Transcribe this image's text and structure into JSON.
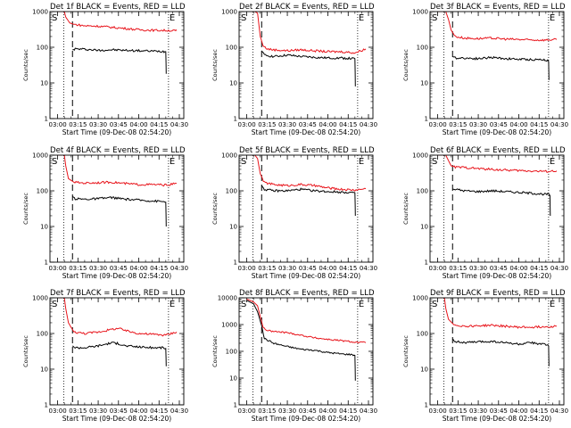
{
  "colors": {
    "events": "#000000",
    "lld": "#e8141b",
    "axis": "#000000",
    "background": "#ffffff"
  },
  "shared": {
    "ylabel": "Counts/sec",
    "xlabel": "Start Time (09-Dec-08 02:54:20)",
    "x_ticks": [
      "03:00",
      "03:15",
      "03:30",
      "03:45",
      "04:00",
      "04:15",
      "04:30"
    ],
    "x_tick_minutes": [
      0,
      15,
      30,
      45,
      60,
      75,
      90
    ],
    "marker_S": "S",
    "marker_E": "E"
  },
  "chart_data": [
    {
      "type": "line",
      "title": "Det 1f BLACK = Events, RED = LLD",
      "xlim_minutes": [
        -5.67,
        93.3
      ],
      "yscale": "log",
      "ylim": [
        1,
        1000
      ],
      "y_ticks": [
        "1",
        "10",
        "100",
        "1000"
      ],
      "dotted_lines_minutes": [
        4.5,
        82
      ],
      "dashed_line_minutes": [
        11
      ],
      "series": [
        {
          "name": "Events",
          "color": "black",
          "x": [
            11,
            13,
            20,
            30,
            40,
            50,
            60,
            70,
            78,
            80,
            80.3
          ],
          "y": [
            85,
            90,
            88,
            82,
            85,
            82,
            80,
            78,
            77,
            75,
            18
          ]
        },
        {
          "name": "LLD",
          "color": "red",
          "x": [
            0,
            5,
            6,
            9,
            12,
            20,
            30,
            45,
            60,
            70,
            82,
            87,
            88
          ],
          "y": [
            1000,
            1000,
            700,
            480,
            440,
            400,
            390,
            350,
            310,
            300,
            295,
            290,
            290
          ]
        }
      ]
    },
    {
      "type": "line",
      "title": "Det 2f BLACK = Events, RED = LLD",
      "xlim_minutes": [
        -5.67,
        93.3
      ],
      "yscale": "log",
      "ylim": [
        1,
        1000
      ],
      "y_ticks": [
        "1",
        "10",
        "100",
        "1000"
      ],
      "dotted_lines_minutes": [
        4.5,
        82
      ],
      "dashed_line_minutes": [
        11
      ],
      "series": [
        {
          "name": "Events",
          "color": "black",
          "x": [
            11,
            13,
            20,
            30,
            40,
            50,
            60,
            70,
            78,
            80,
            80.3
          ],
          "y": [
            80,
            60,
            55,
            60,
            55,
            52,
            50,
            50,
            48,
            48,
            8
          ]
        },
        {
          "name": "LLD",
          "color": "red",
          "x": [
            3,
            6,
            8,
            10,
            12,
            15,
            20,
            30,
            40,
            50,
            60,
            70,
            80,
            88
          ],
          "y": [
            1000,
            1000,
            900,
            200,
            110,
            90,
            85,
            80,
            85,
            80,
            75,
            75,
            70,
            90
          ]
        }
      ]
    },
    {
      "type": "line",
      "title": "Det 3f BLACK = Events, RED = LLD",
      "xlim_minutes": [
        -5.67,
        93.3
      ],
      "yscale": "log",
      "ylim": [
        1,
        1000
      ],
      "y_ticks": [
        "1",
        "10",
        "100",
        "1000"
      ],
      "dotted_lines_minutes": [
        4.5,
        82
      ],
      "dashed_line_minutes": [
        11
      ],
      "series": [
        {
          "name": "Events",
          "color": "black",
          "x": [
            11,
            13,
            20,
            30,
            40,
            50,
            60,
            70,
            78,
            80,
            82,
            82.3
          ],
          "y": [
            55,
            50,
            50,
            48,
            52,
            48,
            46,
            45,
            45,
            44,
            40,
            12
          ]
        },
        {
          "name": "LLD",
          "color": "red",
          "x": [
            0,
            6,
            8,
            10,
            13,
            20,
            30,
            40,
            50,
            60,
            70,
            80,
            88
          ],
          "y": [
            1000,
            1000,
            600,
            300,
            200,
            180,
            175,
            180,
            170,
            165,
            160,
            160,
            165
          ]
        }
      ]
    },
    {
      "type": "line",
      "title": "Det 4f BLACK = Events, RED = LLD",
      "xlim_minutes": [
        -5.67,
        93.3
      ],
      "yscale": "log",
      "ylim": [
        1,
        1000
      ],
      "y_ticks": [
        "1",
        "10",
        "100",
        "1000"
      ],
      "dotted_lines_minutes": [
        4.5,
        82
      ],
      "dashed_line_minutes": [
        11
      ],
      "series": [
        {
          "name": "Events",
          "color": "black",
          "x": [
            11,
            13,
            20,
            30,
            40,
            50,
            60,
            70,
            78,
            80,
            80.3
          ],
          "y": [
            70,
            60,
            58,
            60,
            65,
            58,
            55,
            52,
            50,
            48,
            10
          ]
        },
        {
          "name": "LLD",
          "color": "red",
          "x": [
            0,
            5,
            6,
            8,
            12,
            20,
            30,
            40,
            50,
            60,
            70,
            80,
            88
          ],
          "y": [
            1000,
            1000,
            500,
            220,
            175,
            165,
            170,
            175,
            160,
            150,
            150,
            145,
            160
          ]
        }
      ]
    },
    {
      "type": "line",
      "title": "Det 5f BLACK = Events, RED = LLD",
      "xlim_minutes": [
        -5.67,
        93.3
      ],
      "yscale": "log",
      "ylim": [
        1,
        1000
      ],
      "y_ticks": [
        "1",
        "10",
        "100",
        "1000"
      ],
      "dotted_lines_minutes": [
        4.5,
        82
      ],
      "dashed_line_minutes": [
        11
      ],
      "series": [
        {
          "name": "Events",
          "color": "black",
          "x": [
            11,
            13,
            20,
            30,
            40,
            50,
            60,
            70,
            78,
            80,
            80.3
          ],
          "y": [
            140,
            110,
            100,
            100,
            110,
            100,
            95,
            92,
            90,
            88,
            20
          ]
        },
        {
          "name": "LLD",
          "color": "red",
          "x": [
            3,
            6,
            8,
            10,
            13,
            20,
            30,
            40,
            50,
            60,
            70,
            80,
            88
          ],
          "y": [
            1000,
            1000,
            800,
            300,
            170,
            150,
            140,
            150,
            140,
            120,
            110,
            105,
            115
          ]
        }
      ]
    },
    {
      "type": "line",
      "title": "Det 6f BLACK = Events, RED = LLD",
      "xlim_minutes": [
        -5.67,
        93.3
      ],
      "yscale": "log",
      "ylim": [
        1,
        1000
      ],
      "y_ticks": [
        "1",
        "10",
        "100",
        "1000"
      ],
      "dotted_lines_minutes": [
        4.5,
        82
      ],
      "dashed_line_minutes": [
        11
      ],
      "series": [
        {
          "name": "Events",
          "color": "black",
          "x": [
            11,
            13,
            20,
            30,
            40,
            50,
            60,
            70,
            80,
            82,
            83,
            83.3
          ],
          "y": [
            110,
            110,
            100,
            95,
            100,
            95,
            90,
            85,
            80,
            80,
            75,
            20
          ]
        },
        {
          "name": "LLD",
          "color": "red",
          "x": [
            0,
            6,
            8,
            10,
            13,
            20,
            30,
            40,
            50,
            60,
            70,
            80,
            88
          ],
          "y": [
            1000,
            1000,
            700,
            500,
            460,
            450,
            420,
            400,
            380,
            370,
            360,
            350,
            360
          ]
        }
      ]
    },
    {
      "type": "line",
      "title": "Det 7f BLACK = Events, RED = LLD",
      "xlim_minutes": [
        -5.67,
        93.3
      ],
      "yscale": "log",
      "ylim": [
        1,
        1000
      ],
      "y_ticks": [
        "1",
        "10",
        "100",
        "1000"
      ],
      "dotted_lines_minutes": [
        4.5,
        82
      ],
      "dashed_line_minutes": [
        11
      ],
      "series": [
        {
          "name": "Events",
          "color": "black",
          "x": [
            11,
            13,
            20,
            30,
            40,
            45,
            50,
            60,
            70,
            78,
            80,
            80.3
          ],
          "y": [
            45,
            40,
            40,
            45,
            55,
            52,
            45,
            42,
            40,
            40,
            38,
            12
          ]
        },
        {
          "name": "LLD",
          "color": "red",
          "x": [
            0,
            5,
            6,
            8,
            12,
            20,
            30,
            40,
            45,
            50,
            60,
            70,
            80,
            88
          ],
          "y": [
            1000,
            1000,
            500,
            200,
            110,
            100,
            110,
            130,
            140,
            120,
            100,
            95,
            90,
            110
          ]
        }
      ]
    },
    {
      "type": "line",
      "title": "Det 8f BLACK = Events, RED = LLD",
      "xlim_minutes": [
        -5.67,
        93.3
      ],
      "yscale": "log",
      "ylim": [
        1,
        10000
      ],
      "y_ticks": [
        "1",
        "10",
        "100",
        "1000",
        "10000"
      ],
      "dotted_lines_minutes": [
        4.5,
        82
      ],
      "dashed_line_minutes": [
        11
      ],
      "series": [
        {
          "name": "Events",
          "color": "black",
          "x": [
            0,
            5,
            8,
            11,
            13,
            20,
            30,
            40,
            50,
            60,
            70,
            78,
            80,
            80.3
          ],
          "y": [
            8000,
            6000,
            3000,
            900,
            300,
            200,
            150,
            120,
            110,
            90,
            80,
            75,
            70,
            8
          ]
        },
        {
          "name": "LLD",
          "color": "red",
          "x": [
            0,
            5,
            8,
            10,
            12,
            15,
            20,
            30,
            40,
            50,
            60,
            70,
            80,
            88
          ],
          "y": [
            9000,
            7000,
            5000,
            2000,
            800,
            600,
            550,
            500,
            400,
            320,
            280,
            250,
            220,
            210
          ]
        }
      ]
    },
    {
      "type": "line",
      "title": "Det 9f BLACK = Events, RED = LLD",
      "xlim_minutes": [
        -5.67,
        93.3
      ],
      "yscale": "log",
      "ylim": [
        1,
        1000
      ],
      "y_ticks": [
        "1",
        "10",
        "100",
        "1000"
      ],
      "dotted_lines_minutes": [
        4.5,
        82
      ],
      "dashed_line_minutes": [
        11
      ],
      "series": [
        {
          "name": "Events",
          "color": "black",
          "x": [
            11,
            13,
            20,
            30,
            40,
            50,
            60,
            70,
            78,
            80,
            82,
            82.3
          ],
          "y": [
            70,
            60,
            55,
            58,
            60,
            55,
            50,
            55,
            50,
            48,
            45,
            12
          ]
        },
        {
          "name": "LLD",
          "color": "red",
          "x": [
            0,
            5,
            6,
            8,
            12,
            20,
            30,
            40,
            50,
            60,
            70,
            80,
            88
          ],
          "y": [
            1000,
            1000,
            500,
            250,
            175,
            160,
            165,
            170,
            160,
            150,
            150,
            155,
            160
          ]
        }
      ]
    }
  ]
}
